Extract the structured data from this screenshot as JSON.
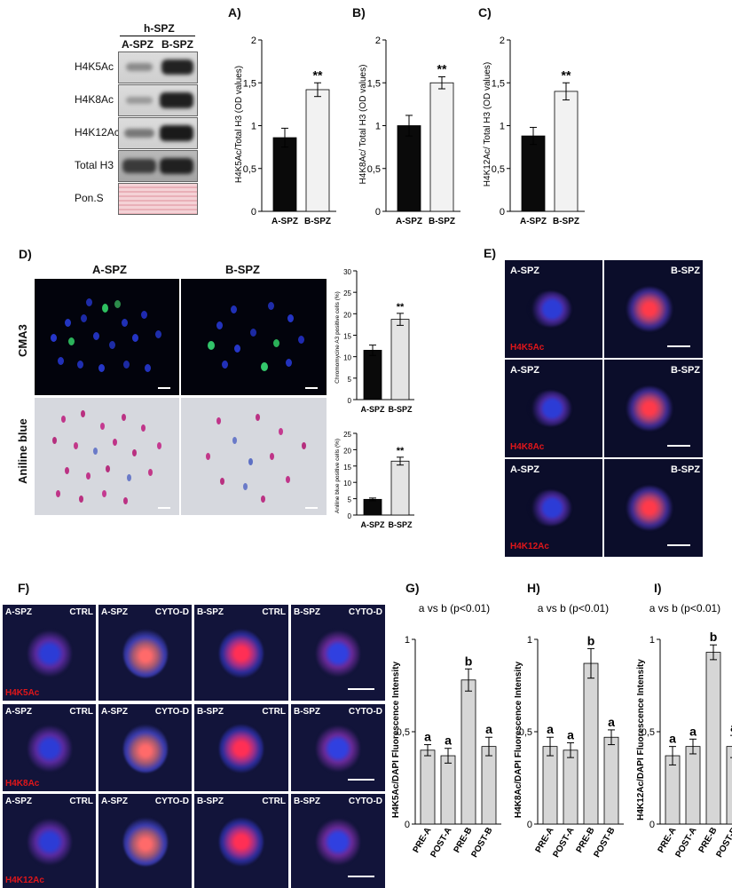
{
  "blot": {
    "header": "h-SPZ",
    "lanes": [
      "A-SPZ",
      "B-SPZ"
    ],
    "rows": [
      "H4K5Ac",
      "H4K8Ac",
      "H4K12Ac",
      "Total H3",
      "Pon.S"
    ]
  },
  "panel_letters": {
    "A": "A)",
    "B": "B)",
    "C": "C)",
    "D": "D)",
    "E": "E)",
    "F": "F)",
    "G": "G)",
    "H": "H)",
    "I": "I)"
  },
  "panel_d": {
    "col_titles": [
      "A-SPZ",
      "B-SPZ"
    ],
    "row_titles": [
      "CMA3",
      "Aniline blue"
    ]
  },
  "panel_e": {
    "labels": [
      "A-SPZ",
      "B-SPZ"
    ],
    "markers": [
      "H4K5Ac",
      "H4K8Ac",
      "H4K12Ac"
    ]
  },
  "panel_f": {
    "columns": [
      {
        "left": "A-SPZ",
        "right": "CTRL"
      },
      {
        "left": "A-SPZ",
        "right": "CYTO-D"
      },
      {
        "left": "B-SPZ",
        "right": "CTRL"
      },
      {
        "left": "B-SPZ",
        "right": "CYTO-D"
      }
    ],
    "markers": [
      "H4K5Ac",
      "H4K8Ac",
      "H4K12Ac"
    ]
  },
  "colors": {
    "black_bar": "#0a0a0a",
    "white_bar": "#f2f2f2",
    "grey_bar": "#d6d6d6",
    "marker_red": "#e0161a",
    "dapi_blue": "#2233cc"
  },
  "chart_data": [
    {
      "id": "A",
      "type": "bar",
      "categories": [
        "A-SPZ",
        "B-SPZ"
      ],
      "values": [
        0.86,
        1.42
      ],
      "errors": [
        0.11,
        0.08
      ],
      "annotations": [
        "",
        "**"
      ],
      "ylabel": "H4K5Ac/Total H3 (OD values)",
      "ylim": [
        0,
        2
      ],
      "yticks": [
        "0",
        "0,5",
        "1",
        "1,5",
        "2"
      ]
    },
    {
      "id": "B",
      "type": "bar",
      "categories": [
        "A-SPZ",
        "B-SPZ"
      ],
      "values": [
        1.0,
        1.5
      ],
      "errors": [
        0.12,
        0.07
      ],
      "annotations": [
        "",
        "**"
      ],
      "ylabel": "H4K8Ac/ Total H3 (OD values)",
      "ylim": [
        0,
        2
      ],
      "yticks": [
        "0",
        "0,5",
        "1",
        "1,5",
        "2"
      ]
    },
    {
      "id": "C",
      "type": "bar",
      "categories": [
        "A-SPZ",
        "B-SPZ"
      ],
      "values": [
        0.88,
        1.4
      ],
      "errors": [
        0.1,
        0.1
      ],
      "annotations": [
        "",
        "**"
      ],
      "ylabel": "H4K12Ac/ Total H3 (OD values)",
      "ylim": [
        0,
        2
      ],
      "yticks": [
        "0",
        "0,5",
        "1",
        "1,5",
        "2"
      ]
    },
    {
      "id": "D1",
      "type": "bar",
      "categories": [
        "A-SPZ",
        "B-SPZ"
      ],
      "values": [
        11.5,
        18.7
      ],
      "errors": [
        1.2,
        1.4
      ],
      "annotations": [
        "",
        "**"
      ],
      "ylabel": "Chromomycine A3 positive cells (%)",
      "ylim": [
        0,
        30
      ],
      "yticks": [
        "0",
        "5",
        "10",
        "15",
        "20",
        "25",
        "30"
      ]
    },
    {
      "id": "D2",
      "type": "bar",
      "categories": [
        "A-SPZ",
        "B-SPZ"
      ],
      "values": [
        4.8,
        16.5
      ],
      "errors": [
        0.4,
        1.2
      ],
      "annotations": [
        "",
        "**"
      ],
      "ylabel": "Aniline blue positive cells (%)",
      "ylim": [
        0,
        25
      ],
      "yticks": [
        "0",
        "5",
        "10",
        "15",
        "20",
        "25"
      ]
    },
    {
      "id": "G",
      "type": "bar",
      "title": "a vs b (p<0.01)",
      "categories": [
        "PRE-A",
        "POST-A",
        "PRE-B",
        "POST-B"
      ],
      "values": [
        0.4,
        0.37,
        0.78,
        0.42
      ],
      "errors": [
        0.03,
        0.04,
        0.06,
        0.05
      ],
      "annotations": [
        "a",
        "a",
        "b",
        "a"
      ],
      "ylabel": "H4K5Ac/DAPI  Fluorescence Intensity",
      "ylim": [
        0,
        1
      ],
      "yticks": [
        "0",
        "0,5",
        "1"
      ]
    },
    {
      "id": "H",
      "type": "bar",
      "title": "a vs b (p<0.01)",
      "categories": [
        "PRE-A",
        "POST-A",
        "PRE-B",
        "POST-B"
      ],
      "values": [
        0.42,
        0.4,
        0.87,
        0.47
      ],
      "errors": [
        0.05,
        0.04,
        0.08,
        0.04
      ],
      "annotations": [
        "a",
        "a",
        "b",
        "a"
      ],
      "ylabel": "H4K8Ac/DAPI  Fluorescence Intensity",
      "ylim": [
        0,
        1
      ],
      "yticks": [
        "0",
        "0,5",
        "1"
      ]
    },
    {
      "id": "I",
      "type": "bar",
      "title": "a vs b (p<0.01)",
      "categories": [
        "PRE-A",
        "POST-A",
        "PRE-B",
        "POST-B"
      ],
      "values": [
        0.37,
        0.42,
        0.93,
        0.42
      ],
      "errors": [
        0.05,
        0.04,
        0.04,
        0.06
      ],
      "annotations": [
        "a",
        "a",
        "b",
        "a"
      ],
      "ylabel": "H4K12Ac/DAPI  Fluorescence Intensity",
      "ylim": [
        0,
        1
      ],
      "yticks": [
        "0",
        "0,5",
        "1"
      ]
    }
  ]
}
